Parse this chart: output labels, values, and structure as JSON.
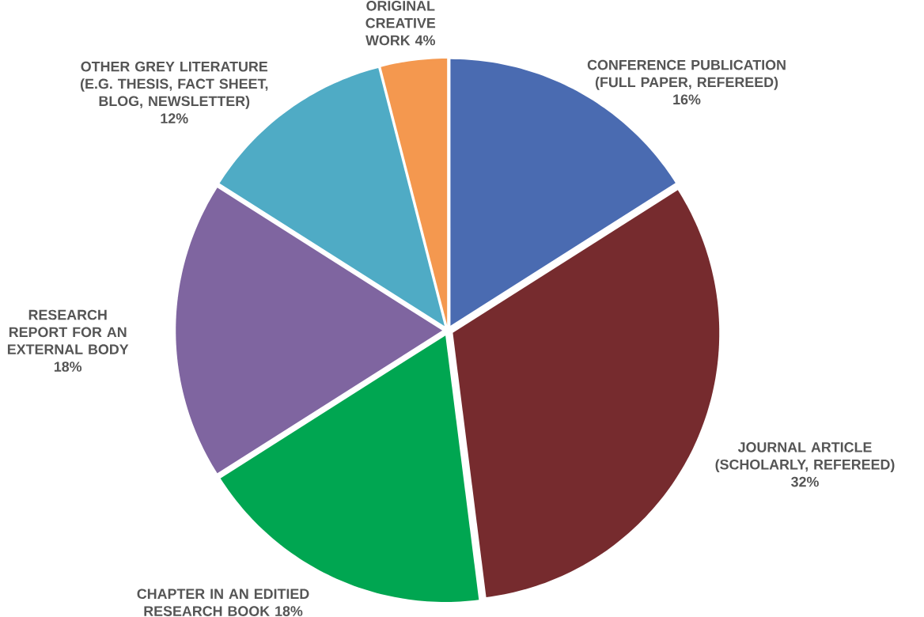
{
  "chart_data": {
    "type": "pie",
    "categories": [
      "CONFERENCE PUBLICATION (FULL PAPER, REFEREED)",
      "JOURNAL ARTICLE (SCHOLARLY, REFEREED)",
      "CHAPTER IN AN EDITIED RESEARCH BOOK",
      "RESEARCH REPORT FOR AN EXTERNAL BODY",
      "OTHER GREY LITERATURE (E.G. THESIS, FACT SHEET, BLOG, NEWSLETTER)",
      "ORIGINAL CREATIVE WORK"
    ],
    "values": [
      16,
      32,
      18,
      18,
      12,
      4
    ],
    "value_labels": [
      "16%",
      "32%",
      "18%",
      "18%",
      "12%",
      "4%"
    ],
    "colors": [
      "#4a6bb1",
      "#762b2e",
      "#00a651",
      "#7f65a0",
      "#4fabc5",
      "#f4984f"
    ]
  }
}
